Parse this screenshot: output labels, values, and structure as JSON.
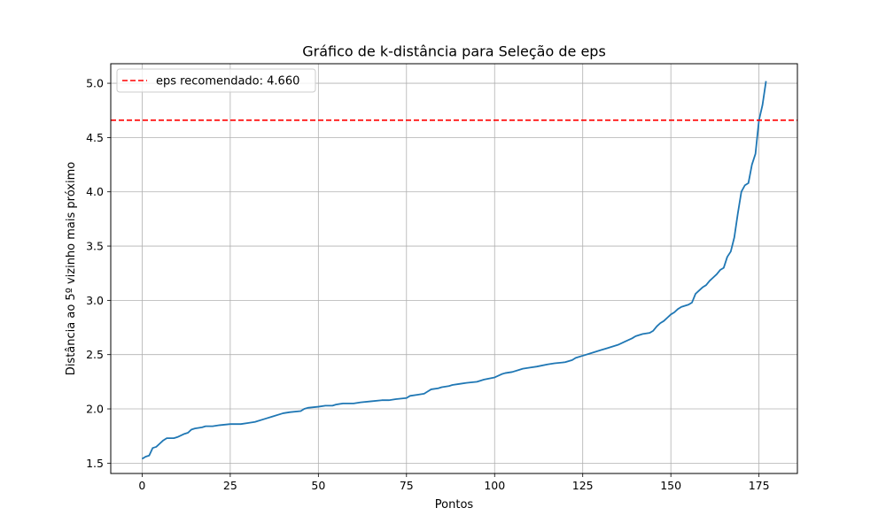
{
  "chart_data": {
    "type": "line",
    "title": "Gráfico de k-distância para Seleção de eps",
    "xlabel": "Pontos",
    "ylabel": "Distância ao 5º vizinho mais próximo",
    "xlim": [
      -8.9,
      185.9
    ],
    "ylim": [
      1.405,
      5.18
    ],
    "xticks": [
      0,
      25,
      50,
      75,
      100,
      125,
      150,
      175
    ],
    "yticks": [
      1.5,
      2.0,
      2.5,
      3.0,
      3.5,
      4.0,
      4.5,
      5.0
    ],
    "ytick_labels": [
      "1.5",
      "2.0",
      "2.5",
      "3.0",
      "3.5",
      "4.0",
      "4.5",
      "5.0"
    ],
    "grid": true,
    "legend_position": "top-left",
    "series": [
      {
        "color": "#1f77b4",
        "x": [
          0,
          1,
          2,
          3,
          4,
          5,
          6,
          7,
          8,
          9,
          10,
          12,
          13,
          14,
          15,
          17,
          18,
          20,
          22,
          25,
          28,
          30,
          32,
          35,
          37,
          40,
          42,
          45,
          46,
          47,
          50,
          52,
          54,
          55,
          57,
          60,
          62,
          65,
          68,
          70,
          72,
          75,
          76,
          78,
          80,
          81,
          82,
          84,
          85,
          87,
          88,
          90,
          92,
          95,
          97,
          100,
          102,
          103,
          105,
          107,
          108,
          110,
          112,
          115,
          117,
          120,
          122,
          123,
          125,
          127,
          130,
          132,
          134,
          135,
          137,
          139,
          140,
          142,
          144,
          145,
          146,
          147,
          148,
          149,
          150,
          151,
          152,
          153,
          154,
          155,
          156,
          157,
          158,
          159,
          160,
          161,
          162,
          163,
          164,
          165,
          166,
          167,
          168,
          169,
          170,
          171,
          172,
          173,
          174,
          175,
          176,
          177
        ],
        "values": [
          1.54,
          1.56,
          1.57,
          1.64,
          1.65,
          1.68,
          1.71,
          1.73,
          1.73,
          1.73,
          1.74,
          1.77,
          1.78,
          1.81,
          1.82,
          1.83,
          1.84,
          1.84,
          1.85,
          1.86,
          1.86,
          1.87,
          1.88,
          1.91,
          1.93,
          1.96,
          1.97,
          1.98,
          2.0,
          2.01,
          2.02,
          2.03,
          2.03,
          2.04,
          2.05,
          2.05,
          2.06,
          2.07,
          2.08,
          2.08,
          2.09,
          2.1,
          2.12,
          2.13,
          2.14,
          2.16,
          2.18,
          2.19,
          2.2,
          2.21,
          2.22,
          2.23,
          2.24,
          2.25,
          2.27,
          2.29,
          2.32,
          2.33,
          2.34,
          2.36,
          2.37,
          2.38,
          2.39,
          2.41,
          2.42,
          2.43,
          2.45,
          2.47,
          2.49,
          2.51,
          2.54,
          2.56,
          2.58,
          2.59,
          2.62,
          2.65,
          2.67,
          2.69,
          2.7,
          2.72,
          2.76,
          2.79,
          2.81,
          2.84,
          2.87,
          2.89,
          2.92,
          2.94,
          2.95,
          2.96,
          2.98,
          3.06,
          3.09,
          3.12,
          3.14,
          3.18,
          3.21,
          3.24,
          3.28,
          3.3,
          3.4,
          3.45,
          3.58,
          3.8,
          4.0,
          4.06,
          4.08,
          4.25,
          4.35,
          4.66,
          4.8,
          5.02
        ]
      }
    ],
    "reference_line": {
      "y": 4.66,
      "color": "#ff0000",
      "label": "eps recomendado: 4.660"
    }
  }
}
